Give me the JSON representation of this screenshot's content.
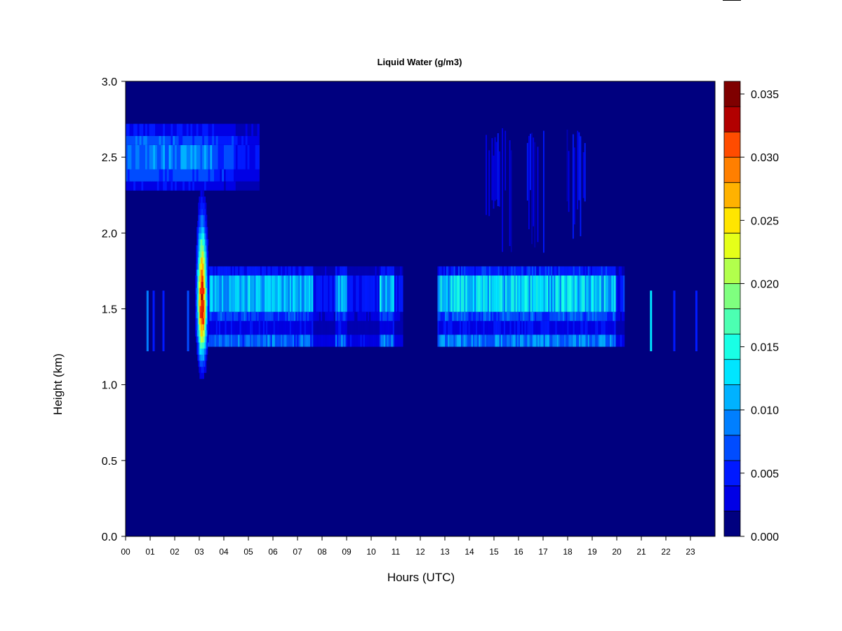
{
  "chart_data": {
    "type": "heatmap",
    "title": "Liquid Water (g/m3)",
    "xlabel": "Hours (UTC)",
    "ylabel": "Height (km)",
    "x_ticks": [
      "00",
      "01",
      "02",
      "03",
      "04",
      "05",
      "06",
      "07",
      "08",
      "09",
      "10",
      "11",
      "12",
      "13",
      "14",
      "15",
      "16",
      "17",
      "18",
      "19",
      "20",
      "21",
      "22",
      "23"
    ],
    "xlim": [
      0,
      24
    ],
    "y_ticks": [
      "0.0",
      "0.5",
      "1.0",
      "1.5",
      "2.0",
      "2.5",
      "3.0"
    ],
    "ylim": [
      0,
      3.0
    ],
    "colorbar": {
      "ticks": [
        "0.000",
        "0.005",
        "0.010",
        "0.015",
        "0.020",
        "0.025",
        "0.030",
        "0.035"
      ],
      "range": [
        0,
        0.036
      ],
      "levels": 18,
      "colors": [
        "#00007F",
        "#0000B2",
        "#0000E5",
        "#0019FF",
        "#004CFF",
        "#007FFF",
        "#00B2FF",
        "#00E5FF",
        "#19FFE5",
        "#4CFFB2",
        "#7FFF7F",
        "#B2FF4C",
        "#E5FF19",
        "#FFE500",
        "#FFB200",
        "#FF7F00",
        "#FF4C00",
        "#FF1900",
        "#E50000",
        "#B20000",
        "#7F0000"
      ]
    },
    "features": [
      {
        "name": "upper cloud layer",
        "t0": 0.0,
        "t1": 5.4,
        "h0": 2.28,
        "h1": 2.72,
        "value": 0.0075
      },
      {
        "name": "upper cloud patches",
        "t0": 14.6,
        "t1": 18.9,
        "h0": 2.3,
        "h1": 2.7,
        "value": 0.005
      },
      {
        "name": "main cloud layer A",
        "t0": 3.2,
        "t1": 11.3,
        "h0": 1.25,
        "h1": 1.78,
        "value": 0.011
      },
      {
        "name": "main cloud layer B",
        "t0": 12.7,
        "t1": 20.3,
        "h0": 1.25,
        "h1": 1.78,
        "value": 0.012
      },
      {
        "name": "convective core",
        "t": 3.1,
        "h0": 0.92,
        "h1": 2.9,
        "peak_height": 1.5,
        "value": 0.033
      }
    ]
  }
}
